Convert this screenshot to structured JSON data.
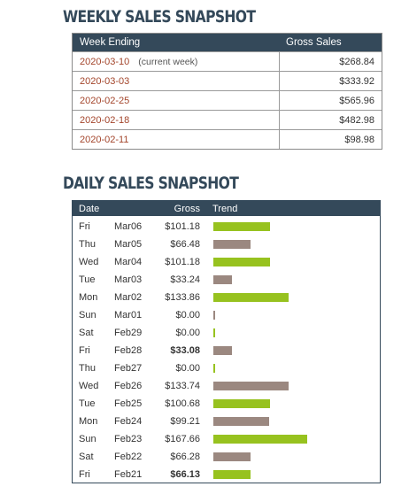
{
  "weekly": {
    "title": "WEEKLY SALES SNAPSHOT",
    "headers": {
      "week": "Week Ending",
      "gross": "Gross Sales"
    },
    "rows": [
      {
        "date": "2020-03-10",
        "note": "(current week)",
        "gross": "$268.84"
      },
      {
        "date": "2020-03-03",
        "note": "",
        "gross": "$333.92"
      },
      {
        "date": "2020-02-25",
        "note": "",
        "gross": "$565.96"
      },
      {
        "date": "2020-02-18",
        "note": "",
        "gross": "$482.98"
      },
      {
        "date": "2020-02-11",
        "note": "",
        "gross": "$98.98"
      }
    ]
  },
  "daily": {
    "title": "DAILY SALES SNAPSHOT",
    "headers": {
      "date": "Date",
      "gross": "Gross",
      "trend": "Trend"
    },
    "colors": {
      "green": "#97c21f",
      "taupe": "#9b8880"
    },
    "rows": [
      {
        "day": "Fri",
        "date": "Mar06",
        "gross": "$101.18",
        "value": 101.18,
        "color": "green",
        "bold": false
      },
      {
        "day": "Thu",
        "date": "Mar05",
        "gross": "$66.48",
        "value": 66.48,
        "color": "taupe",
        "bold": false
      },
      {
        "day": "Wed",
        "date": "Mar04",
        "gross": "$101.18",
        "value": 101.18,
        "color": "green",
        "bold": false
      },
      {
        "day": "Tue",
        "date": "Mar03",
        "gross": "$33.24",
        "value": 33.24,
        "color": "taupe",
        "bold": false
      },
      {
        "day": "Mon",
        "date": "Mar02",
        "gross": "$133.86",
        "value": 133.86,
        "color": "green",
        "bold": false
      },
      {
        "day": "Sun",
        "date": "Mar01",
        "gross": "$0.00",
        "value": 0,
        "color": "taupe",
        "bold": false
      },
      {
        "day": "Sat",
        "date": "Feb29",
        "gross": "$0.00",
        "value": 0,
        "color": "green",
        "bold": false
      },
      {
        "day": "Fri",
        "date": "Feb28",
        "gross": "$33.08",
        "value": 33.08,
        "color": "taupe",
        "bold": true
      },
      {
        "day": "Thu",
        "date": "Feb27",
        "gross": "$0.00",
        "value": 0,
        "color": "green",
        "bold": false
      },
      {
        "day": "Wed",
        "date": "Feb26",
        "gross": "$133.74",
        "value": 133.74,
        "color": "taupe",
        "bold": false
      },
      {
        "day": "Tue",
        "date": "Feb25",
        "gross": "$100.68",
        "value": 100.68,
        "color": "green",
        "bold": false
      },
      {
        "day": "Mon",
        "date": "Feb24",
        "gross": "$99.21",
        "value": 99.21,
        "color": "taupe",
        "bold": false
      },
      {
        "day": "Sun",
        "date": "Feb23",
        "gross": "$167.66",
        "value": 167.66,
        "color": "green",
        "bold": false
      },
      {
        "day": "Sat",
        "date": "Feb22",
        "gross": "$66.28",
        "value": 66.28,
        "color": "taupe",
        "bold": false
      },
      {
        "day": "Fri",
        "date": "Feb21",
        "gross": "$66.13",
        "value": 66.13,
        "color": "green",
        "bold": true
      }
    ]
  }
}
